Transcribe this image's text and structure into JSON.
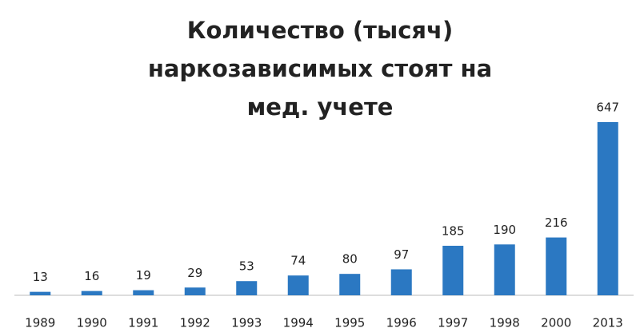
{
  "chart_data": {
    "type": "bar",
    "title": "Количество (тысяч) наркозависимых стоят на мед. учете",
    "categories": [
      "1989",
      "1990",
      "1991",
      "1992",
      "1993",
      "1994",
      "1995",
      "1996",
      "1997",
      "1998",
      "2000",
      "2013"
    ],
    "values": [
      13,
      16,
      19,
      29,
      53,
      74,
      80,
      97,
      185,
      190,
      216,
      647
    ],
    "color": "#2b78c2"
  }
}
